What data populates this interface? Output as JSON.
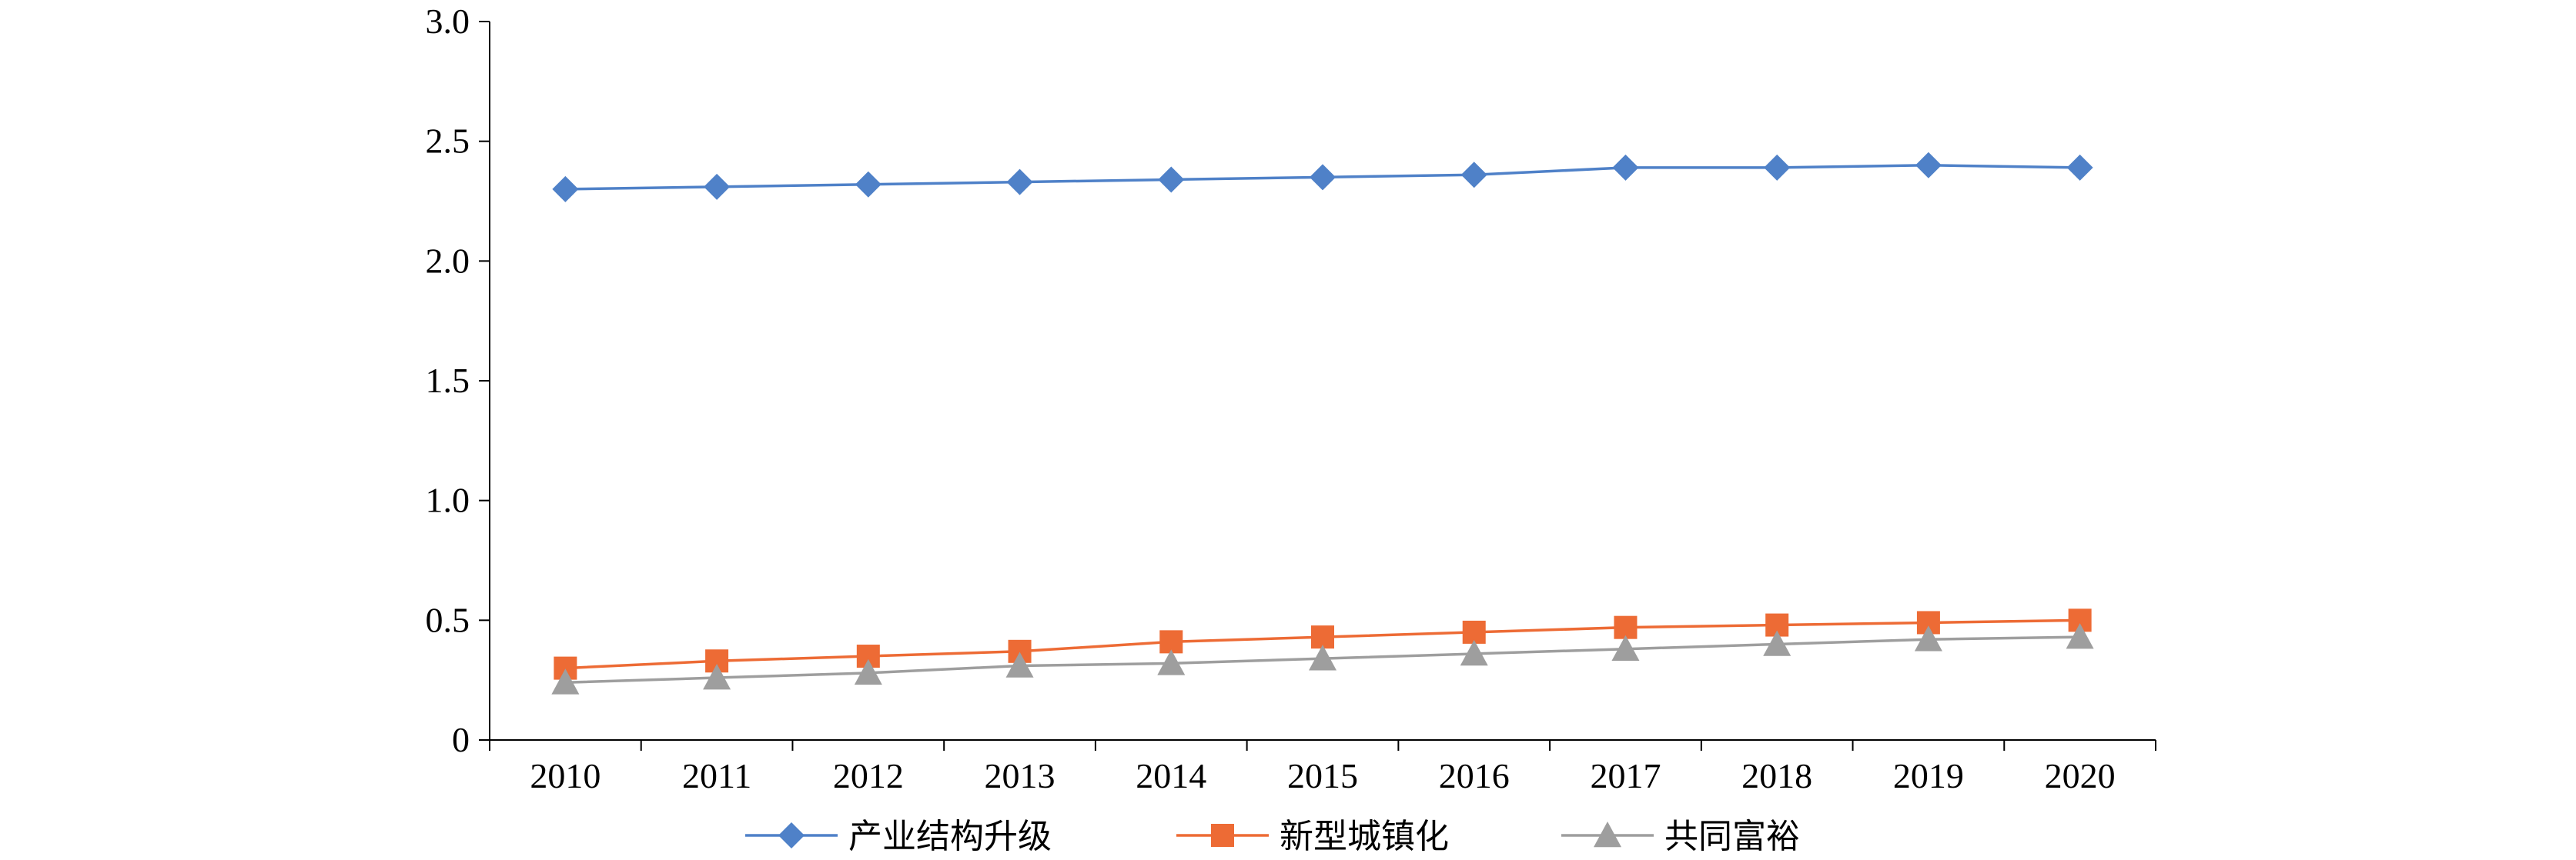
{
  "chart_data": {
    "type": "line",
    "title": "",
    "xlabel": "",
    "ylabel": "",
    "categories": [
      "2010",
      "2011",
      "2012",
      "2013",
      "2014",
      "2015",
      "2016",
      "2017",
      "2018",
      "2019",
      "2020"
    ],
    "ylim": [
      0,
      3.0
    ],
    "y_ticks": [
      {
        "value": 0,
        "label": "0"
      },
      {
        "value": 0.5,
        "label": "0.5"
      },
      {
        "value": 1.0,
        "label": "1.0"
      },
      {
        "value": 1.5,
        "label": "1.5"
      },
      {
        "value": 2.0,
        "label": "2.0"
      },
      {
        "value": 2.5,
        "label": "2.5"
      },
      {
        "value": 3.0,
        "label": "3.0"
      }
    ],
    "grid": false,
    "legend_position": "bottom",
    "series": [
      {
        "name": "产业结构升级",
        "marker": "diamond",
        "color": "#4F81C8",
        "values": [
          2.3,
          2.31,
          2.32,
          2.33,
          2.34,
          2.35,
          2.36,
          2.39,
          2.39,
          2.4,
          2.39
        ]
      },
      {
        "name": "新型城镇化",
        "marker": "square",
        "color": "#ED6B35",
        "values": [
          0.3,
          0.33,
          0.35,
          0.37,
          0.41,
          0.43,
          0.45,
          0.47,
          0.48,
          0.49,
          0.5
        ]
      },
      {
        "name": "共同富裕",
        "marker": "triangle",
        "color": "#9E9E9E",
        "values": [
          0.24,
          0.26,
          0.28,
          0.31,
          0.32,
          0.34,
          0.36,
          0.38,
          0.4,
          0.42,
          0.43
        ]
      }
    ]
  }
}
